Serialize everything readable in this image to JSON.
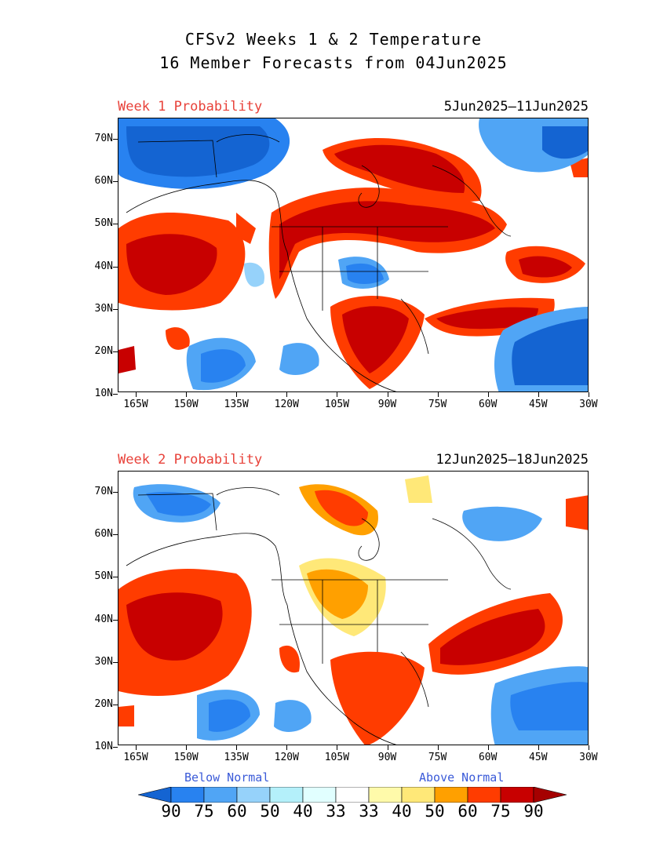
{
  "title": {
    "line1": "CFSv2 Weeks 1 & 2 Temperature",
    "line2": "16 Member Forecasts from 04Jun2025"
  },
  "panels": [
    {
      "label": "Week 1 Probability",
      "dates": "5Jun2025—11Jun2025"
    },
    {
      "label": "Week 2 Probability",
      "dates": "12Jun2025—18Jun2025"
    }
  ],
  "axes": {
    "lat_labels": [
      "70N",
      "60N",
      "50N",
      "40N",
      "30N",
      "20N",
      "10N"
    ],
    "lon_labels": [
      "165W",
      "150W",
      "135W",
      "120W",
      "105W",
      "90W",
      "75W",
      "60W",
      "45W",
      "30W"
    ]
  },
  "legend": {
    "below_label": "Below Normal",
    "above_label": "Above Normal",
    "values": [
      "90",
      "75",
      "60",
      "50",
      "40",
      "33",
      "33",
      "40",
      "50",
      "60",
      "75",
      "90"
    ],
    "colors": [
      "#1464d2",
      "#2882f0",
      "#50a5f5",
      "#96d2fa",
      "#b4f0fa",
      "#e1ffff",
      "#ffffff",
      "#fffaaa",
      "#ffe878",
      "#ffa000",
      "#ff3c00",
      "#c80000",
      "#a50000"
    ]
  }
}
